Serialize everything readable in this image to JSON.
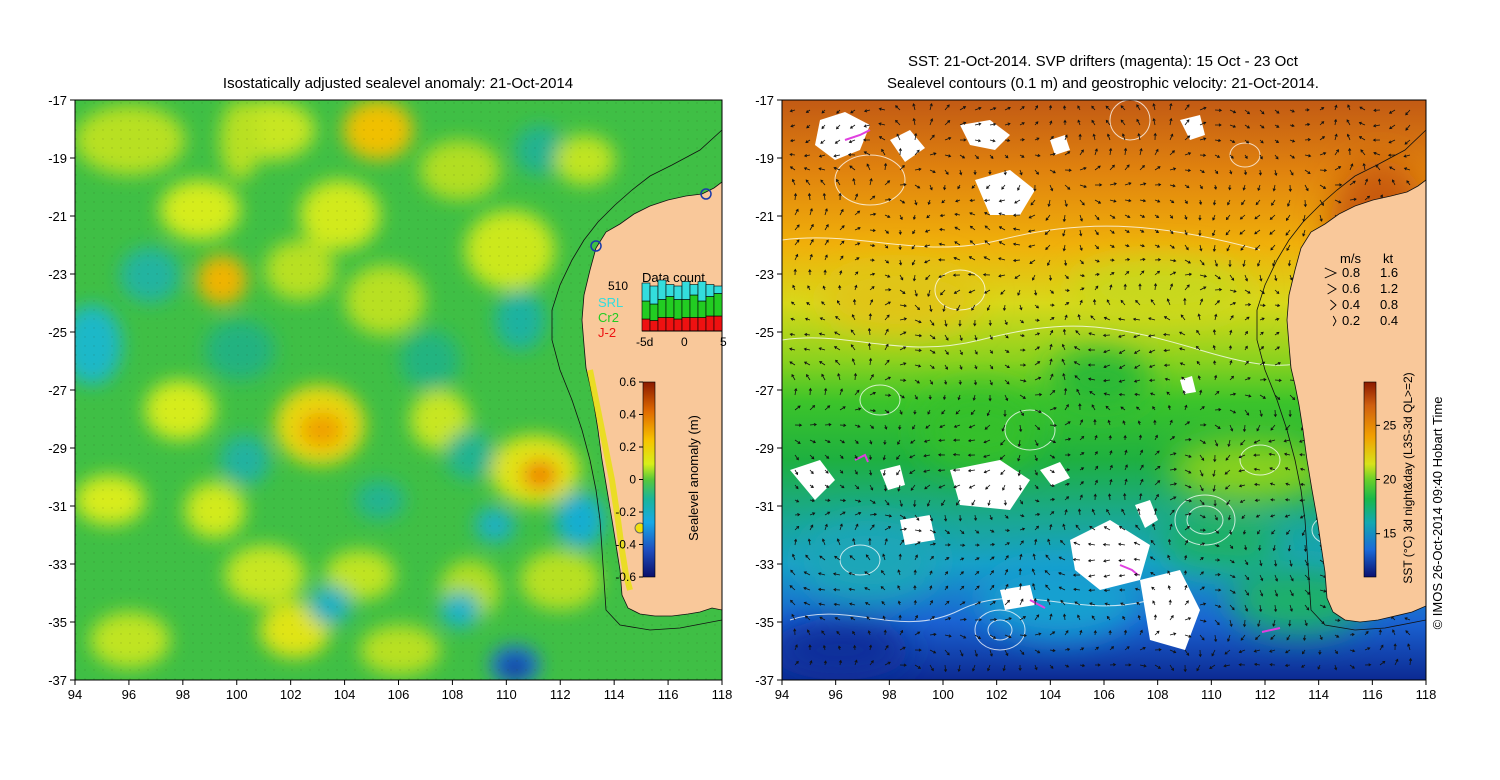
{
  "left_map": {
    "title": "Isostatically adjusted sealevel anomaly: 21-Oct-2014",
    "x_ticks": [
      "94",
      "96",
      "98",
      "100",
      "102",
      "104",
      "106",
      "108",
      "110",
      "112",
      "114",
      "116",
      "118"
    ],
    "y_ticks": [
      "-17",
      "-19",
      "-21",
      "-23",
      "-25",
      "-27",
      "-29",
      "-31",
      "-33",
      "-35",
      "-37"
    ],
    "data_count": {
      "title": "Data count",
      "max_label": "510",
      "legend": [
        {
          "label": "SRL",
          "color": "#33dddd"
        },
        {
          "label": "Cr2",
          "color": "#22cc22"
        },
        {
          "label": "J-2",
          "color": "#ee1111"
        }
      ],
      "x_ticks": [
        "-5d",
        "0",
        "5"
      ],
      "bars": [
        {
          "srl": 12,
          "cr2": 12,
          "j2": 8
        },
        {
          "srl": 12,
          "cr2": 11,
          "j2": 7
        },
        {
          "srl": 13,
          "cr2": 12,
          "j2": 9
        },
        {
          "srl": 8,
          "cr2": 14,
          "j2": 9
        },
        {
          "srl": 9,
          "cr2": 13,
          "j2": 8
        },
        {
          "srl": 12,
          "cr2": 12,
          "j2": 9
        },
        {
          "srl": 7,
          "cr2": 15,
          "j2": 9
        },
        {
          "srl": 13,
          "cr2": 11,
          "j2": 9
        },
        {
          "srl": 8,
          "cr2": 13,
          "j2": 10
        },
        {
          "srl": 5,
          "cr2": 15,
          "j2": 10
        }
      ]
    },
    "colorbar": {
      "label": "Sealevel anomaly (m)",
      "ticks": [
        "0.6",
        "0.4",
        "0.2",
        "0",
        "-0.2",
        "-0.4",
        "-0.6"
      ]
    }
  },
  "right_map": {
    "title_line1": "SST: 21-Oct-2014. SVP drifters (magenta): 15 Oct - 23 Oct",
    "title_line2": "Sealevel contours (0.1 m) and geostrophic velocity: 21-Oct-2014.",
    "x_ticks": [
      "94",
      "96",
      "98",
      "100",
      "102",
      "104",
      "106",
      "108",
      "110",
      "112",
      "114",
      "116",
      "118"
    ],
    "y_ticks": [
      "-17",
      "-19",
      "-21",
      "-23",
      "-25",
      "-27",
      "-29",
      "-31",
      "-33",
      "-35",
      "-37"
    ],
    "velocity_legend": {
      "header_ms": "m/s",
      "header_kt": "kt",
      "rows": [
        {
          "ms": "0.8",
          "kt": "1.6"
        },
        {
          "ms": "0.6",
          "kt": "1.2"
        },
        {
          "ms": "0.4",
          "kt": "0.8"
        },
        {
          "ms": "0.2",
          "kt": "0.4"
        }
      ]
    },
    "colorbar": {
      "label": "SST (°C) 3d night&day (L3S-3d QL>=2)",
      "ticks": [
        "25",
        "20",
        "15"
      ]
    }
  },
  "credit": "© IMOS 26-Oct-2014 09:40 Hobart Time"
}
